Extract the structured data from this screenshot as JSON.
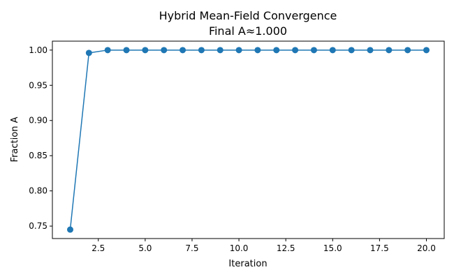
{
  "chart_data": {
    "type": "line",
    "title": "Hybrid Mean-Field Convergence",
    "subtitle": "Final A≈1.000",
    "xlabel": "Iteration",
    "ylabel": "Fraction A",
    "xlim": [
      0.05,
      20.95
    ],
    "ylim": [
      0.7323,
      1.0127
    ],
    "xticks": [
      2.5,
      5.0,
      7.5,
      10.0,
      12.5,
      15.0,
      17.5,
      20.0
    ],
    "xtick_labels": [
      "2.5",
      "5.0",
      "7.5",
      "10.0",
      "12.5",
      "15.0",
      "17.5",
      "20.0"
    ],
    "yticks": [
      0.75,
      0.8,
      0.85,
      0.9,
      0.95,
      1.0
    ],
    "ytick_labels": [
      "0.75",
      "0.80",
      "0.85",
      "0.90",
      "0.95",
      "1.00"
    ],
    "grid": false,
    "series": [
      {
        "color": "#1f77b4",
        "marker": "circle",
        "x": [
          1,
          2,
          3,
          4,
          5,
          6,
          7,
          8,
          9,
          10,
          11,
          12,
          13,
          14,
          15,
          16,
          17,
          18,
          19,
          20
        ],
        "y": [
          0.745,
          0.996,
          1.0,
          1.0,
          1.0,
          1.0,
          1.0,
          1.0,
          1.0,
          1.0,
          1.0,
          1.0,
          1.0,
          1.0,
          1.0,
          1.0,
          1.0,
          1.0,
          1.0,
          1.0
        ]
      }
    ]
  }
}
